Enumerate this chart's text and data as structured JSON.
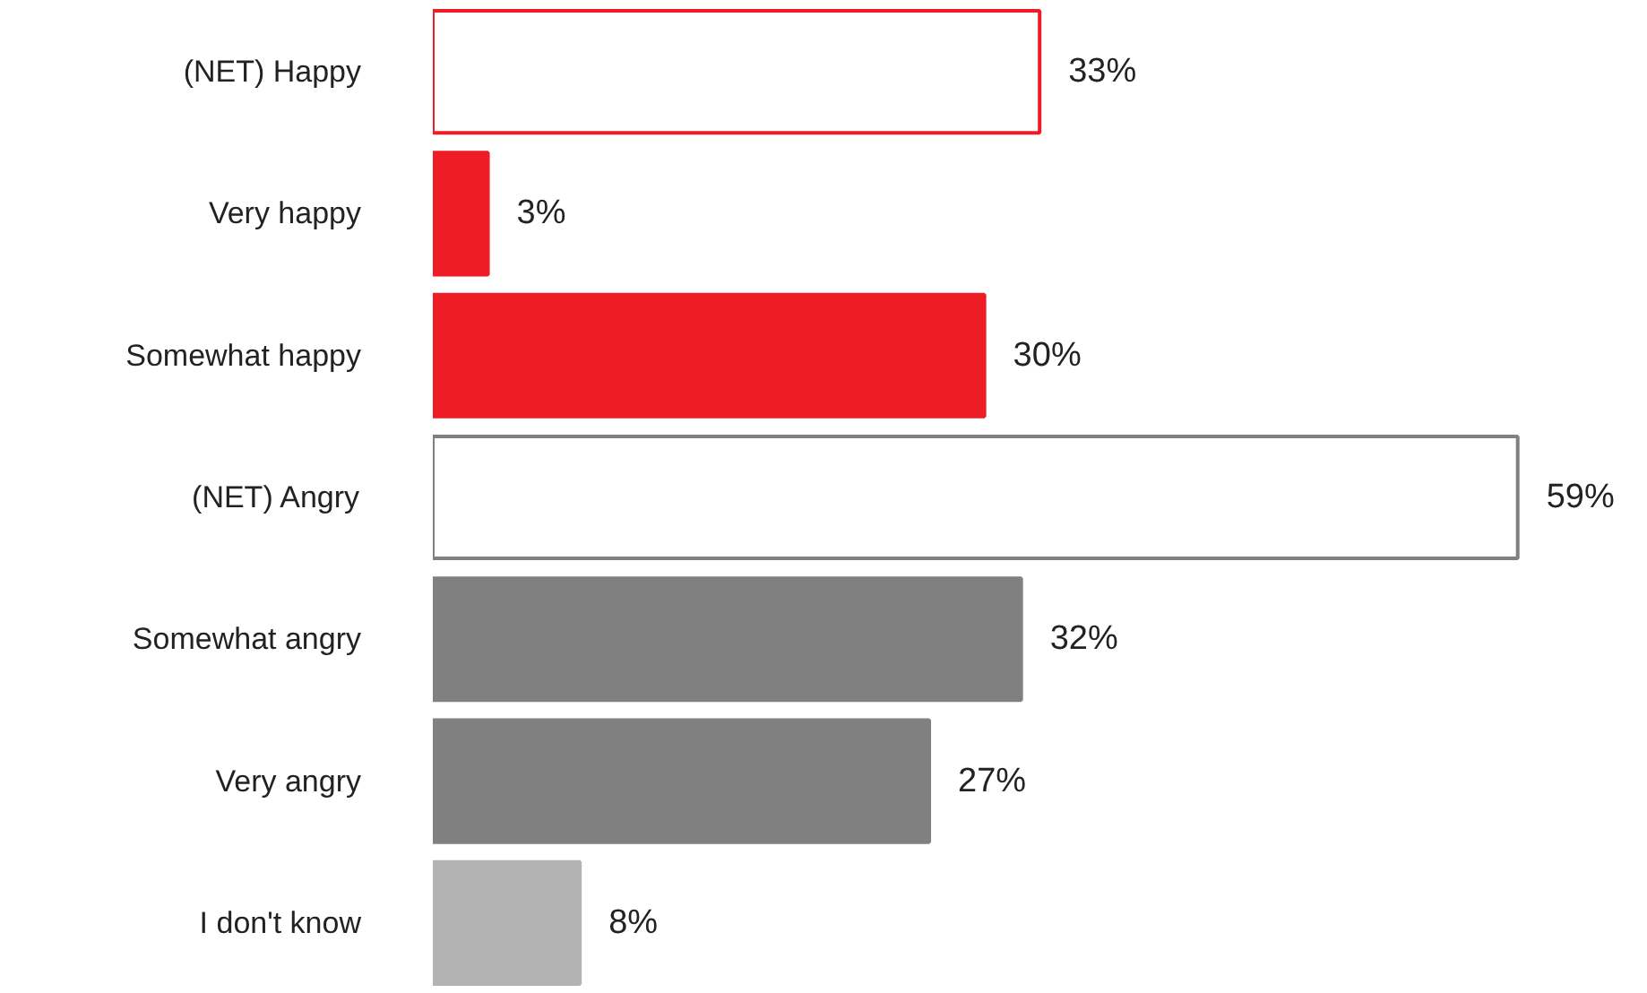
{
  "chart_data": {
    "type": "bar",
    "orientation": "horizontal",
    "categories": [
      "(NET) Happy",
      "Very happy",
      "Somewhat happy",
      "(NET) Angry",
      "Somewhat angry",
      "Very angry",
      "I don't know"
    ],
    "values": [
      33,
      3,
      30,
      59,
      32,
      27,
      8
    ],
    "colors": [
      "#ffffff",
      "#ee1c25",
      "#ee1c25",
      "#ffffff",
      "#808080",
      "#808080",
      "#b3b3b3"
    ],
    "value_labels": [
      "33%",
      "3%",
      "30%",
      "59%",
      "32%",
      "27%",
      "8%"
    ],
    "tick_labels": "y",
    "grid": false
  }
}
